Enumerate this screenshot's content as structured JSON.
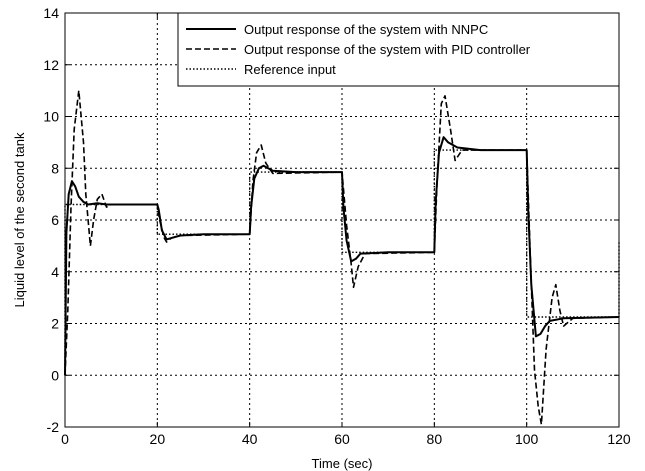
{
  "chart_data": {
    "type": "line",
    "title": "",
    "xlabel": "Time (sec)",
    "ylabel": "Liquid level of the second tank",
    "xlim": [
      0,
      120
    ],
    "ylim": [
      -2,
      14
    ],
    "xticks": [
      0,
      20,
      40,
      60,
      80,
      100,
      120
    ],
    "yticks": [
      -2,
      0,
      2,
      4,
      6,
      8,
      10,
      12,
      14
    ],
    "grid": true,
    "legend_position": "top-right",
    "series": [
      {
        "name": "Output response of the system with NNPC",
        "style": "solid",
        "points": [
          [
            0,
            0
          ],
          [
            0.3,
            5.5
          ],
          [
            0.8,
            7.0
          ],
          [
            1.5,
            7.5
          ],
          [
            2.2,
            7.3
          ],
          [
            3,
            6.9
          ],
          [
            4,
            6.7
          ],
          [
            5,
            6.6
          ],
          [
            7,
            6.65
          ],
          [
            9,
            6.6
          ],
          [
            20,
            6.6
          ],
          [
            20.3,
            6.4
          ],
          [
            21,
            5.6
          ],
          [
            22,
            5.25
          ],
          [
            23,
            5.3
          ],
          [
            25,
            5.4
          ],
          [
            30,
            5.45
          ],
          [
            40,
            5.45
          ],
          [
            40.3,
            6.5
          ],
          [
            41,
            7.6
          ],
          [
            42,
            8.0
          ],
          [
            43,
            8.1
          ],
          [
            45,
            7.9
          ],
          [
            50,
            7.85
          ],
          [
            60,
            7.85
          ],
          [
            60.3,
            6.5
          ],
          [
            61,
            5.2
          ],
          [
            62,
            4.4
          ],
          [
            63,
            4.5
          ],
          [
            64,
            4.7
          ],
          [
            70,
            4.75
          ],
          [
            80,
            4.75
          ],
          [
            80.3,
            6.7
          ],
          [
            81,
            8.6
          ],
          [
            82,
            9.2
          ],
          [
            83,
            9.0
          ],
          [
            85,
            8.8
          ],
          [
            90,
            8.7
          ],
          [
            100,
            8.7
          ],
          [
            100.3,
            6.5
          ],
          [
            101,
            3.5
          ],
          [
            102,
            1.5
          ],
          [
            103,
            1.6
          ],
          [
            104,
            1.9
          ],
          [
            105,
            2.1
          ],
          [
            108,
            2.2
          ],
          [
            120,
            2.25
          ]
        ]
      },
      {
        "name": "Output response of the system with PID controller",
        "style": "dashed",
        "points": [
          [
            0,
            0
          ],
          [
            0.6,
            2.5
          ],
          [
            1.3,
            6.5
          ],
          [
            2,
            9.5
          ],
          [
            3,
            11.0
          ],
          [
            4,
            9.0
          ],
          [
            4.5,
            7.0
          ],
          [
            5.5,
            5.0
          ],
          [
            6.2,
            6.0
          ],
          [
            7,
            6.8
          ],
          [
            8,
            7.0
          ],
          [
            9,
            6.5
          ],
          [
            10,
            6.6
          ],
          [
            12,
            6.6
          ],
          [
            20,
            6.6
          ],
          [
            20.5,
            6.0
          ],
          [
            21.5,
            5.3
          ],
          [
            22,
            5.15
          ],
          [
            23,
            5.3
          ],
          [
            25,
            5.4
          ],
          [
            40,
            5.45
          ],
          [
            40.7,
            7.5
          ],
          [
            41.5,
            8.6
          ],
          [
            42.5,
            8.9
          ],
          [
            43.5,
            8.2
          ],
          [
            45,
            7.8
          ],
          [
            60,
            7.85
          ],
          [
            61,
            5.8
          ],
          [
            62,
            4.3
          ],
          [
            62.5,
            3.4
          ],
          [
            63.5,
            4.2
          ],
          [
            65,
            4.7
          ],
          [
            80,
            4.75
          ],
          [
            80.6,
            7.5
          ],
          [
            81.5,
            10.5
          ],
          [
            82.3,
            10.8
          ],
          [
            83.5,
            9.5
          ],
          [
            84.5,
            8.3
          ],
          [
            86,
            8.7
          ],
          [
            100,
            8.7
          ],
          [
            101,
            3.5
          ],
          [
            101.7,
            0.2
          ],
          [
            102.5,
            -1.2
          ],
          [
            103.2,
            -1.9
          ],
          [
            104.2,
            1.0
          ],
          [
            105.5,
            3.0
          ],
          [
            106.3,
            3.5
          ],
          [
            107.2,
            2.5
          ],
          [
            108,
            1.9
          ],
          [
            110,
            2.2
          ],
          [
            120,
            2.25
          ]
        ]
      },
      {
        "name": "Reference input",
        "style": "dotted",
        "points": [
          [
            0,
            0
          ],
          [
            0,
            6.6
          ],
          [
            20,
            6.6
          ],
          [
            20,
            5.45
          ],
          [
            40,
            5.45
          ],
          [
            40,
            7.85
          ],
          [
            60,
            7.85
          ],
          [
            60,
            4.75
          ],
          [
            80,
            4.75
          ],
          [
            80,
            8.7
          ],
          [
            100,
            8.7
          ],
          [
            100,
            2.25
          ],
          [
            120,
            2.25
          ],
          [
            120,
            5.2
          ]
        ]
      }
    ]
  }
}
